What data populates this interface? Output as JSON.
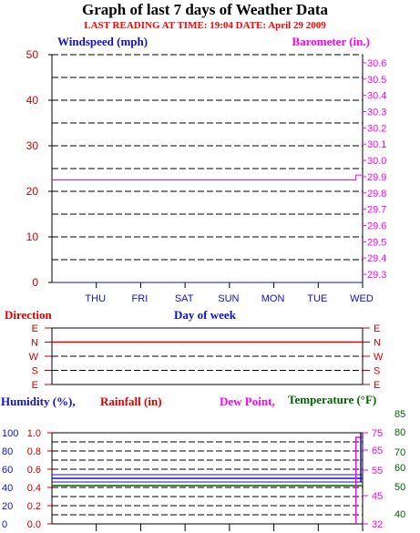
{
  "header": {
    "title": "Graph of last 7 days of Weather Data",
    "reading": "LAST READING AT TIME: 19:04  DATE: April 29 2009"
  },
  "colors": {
    "title": "#000000",
    "reading": "#ff0000",
    "blue": "#1010cc",
    "magenta": "#ff00ff",
    "red": "#e00000",
    "green": "#006400",
    "grid": "#000000",
    "tick_red": "#cc0000"
  },
  "chart_data": [
    {
      "type": "line",
      "name": "wind-barometer",
      "ylabel_left": "Windspeed (mph)",
      "ylabel_right": "Barometer (in.)",
      "xlabel": "Day of week",
      "categories": [
        "THU",
        "FRI",
        "SAT",
        "SUN",
        "MON",
        "TUE",
        "WED"
      ],
      "ylim_left": [
        0,
        50
      ],
      "yticks_left": [
        "0",
        "10",
        "20",
        "30",
        "40",
        "50"
      ],
      "ylim_right": [
        29.25,
        30.65
      ],
      "yticks_right": [
        "29.3",
        "29.4",
        "29.5",
        "29.6",
        "29.7",
        "29.8",
        "29.9",
        "30.0",
        "30.1",
        "30.2",
        "30.3",
        "30.4",
        "30.5",
        "30.6"
      ],
      "series": [
        {
          "axis": "right",
          "color": "#ff00ff",
          "x": [
            0,
            6.85,
            6.85,
            7
          ],
          "values": [
            29.88,
            29.88,
            29.91,
            29.91
          ]
        },
        {
          "axis": "left",
          "color": "#1010cc",
          "x": [
            0,
            7
          ],
          "values": [
            0,
            0
          ]
        }
      ],
      "grid": true
    },
    {
      "type": "line",
      "name": "direction",
      "ylabel": "Direction",
      "yticks": [
        "E",
        "N",
        "W",
        "S",
        "E"
      ],
      "series": [
        {
          "color": "#e00000",
          "x": [
            0,
            7
          ],
          "values": [
            1,
            1
          ]
        }
      ],
      "grid": true
    },
    {
      "type": "line",
      "name": "humidity-rain-temp",
      "labels": {
        "humidity": "Humidity (%),",
        "rainfall": "Rainfall (in)",
        "dewpoint": "Dew Point,",
        "temperature": "Temperature (°F)"
      },
      "yticks_humidity": [
        "0",
        "20",
        "40",
        "60",
        "80",
        "100"
      ],
      "yticks_rain": [
        "0.0",
        "0.2",
        "0.4",
        "0.6",
        "0.8",
        "1.0"
      ],
      "yticks_temp_magenta": [
        "32",
        "45",
        "55",
        "65",
        "75"
      ],
      "yticks_temp_green": [
        "40",
        "50",
        "60",
        "70",
        "80",
        "85"
      ],
      "rain_ylim": [
        0,
        1.0
      ],
      "series": [
        {
          "label": "humidity",
          "color": "#1010cc",
          "x": [
            0,
            7
          ],
          "values": [
            0.5,
            0.5
          ],
          "band": [
            0.46,
            0.54
          ]
        },
        {
          "label": "temperature",
          "color": "#006400",
          "x": [
            0,
            7
          ],
          "values": [
            0.42,
            0.42
          ]
        },
        {
          "label": "dewpoint",
          "color": "#ff00ff",
          "x": [
            6.85,
            6.85,
            7
          ],
          "values": [
            0.0,
            0.95,
            0.95
          ]
        }
      ],
      "grid": true
    }
  ]
}
